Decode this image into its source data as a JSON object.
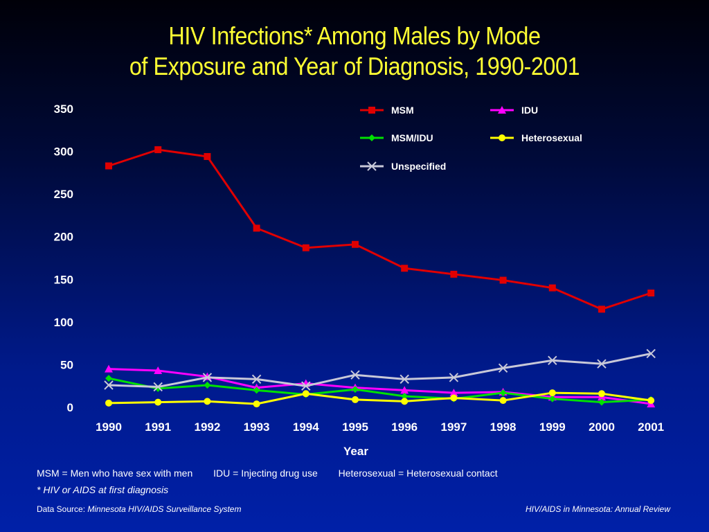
{
  "title": {
    "line1": "HIV Infections* Among Males by Mode",
    "line2": "of Exposure and Year of Diagnosis, 1990-2001"
  },
  "chart_data": {
    "type": "line",
    "xlabel": "Year",
    "ylabel": "",
    "ylim": [
      0,
      350
    ],
    "yticks": [
      0,
      50,
      100,
      150,
      200,
      250,
      300,
      350
    ],
    "x": [
      "1990",
      "1991",
      "1992",
      "1993",
      "1994",
      "1995",
      "1996",
      "1997",
      "1998",
      "1999",
      "2000",
      "2001"
    ],
    "grid": false,
    "legend_position": "top-right",
    "series": [
      {
        "name": "MSM",
        "color": "#e00000",
        "marker": "square",
        "values": [
          283,
          302,
          294,
          210,
          187,
          191,
          163,
          156,
          149,
          140,
          115,
          134
        ]
      },
      {
        "name": "IDU",
        "color": "#ff00ff",
        "marker": "triangle",
        "values": [
          45,
          43,
          36,
          23,
          28,
          23,
          20,
          17,
          18,
          12,
          12,
          4
        ]
      },
      {
        "name": "MSM/IDU",
        "color": "#00e000",
        "marker": "diamond",
        "values": [
          34,
          22,
          26,
          20,
          15,
          21,
          13,
          10,
          17,
          10,
          6,
          9
        ]
      },
      {
        "name": "Heterosexual",
        "color": "#ffff00",
        "marker": "circle",
        "values": [
          5,
          6,
          7,
          4,
          16,
          9,
          7,
          11,
          8,
          17,
          16,
          8
        ]
      },
      {
        "name": "Unspecified",
        "color": "#c8c8d8",
        "marker": "x",
        "values": [
          26,
          24,
          35,
          33,
          25,
          38,
          33,
          35,
          46,
          55,
          51,
          63
        ]
      }
    ]
  },
  "footnotes": {
    "msm": "MSM = Men who have sex with men",
    "idu": "IDU = Injecting drug use",
    "het": "Heterosexual = Heterosexual contact",
    "asterisk": "* HIV or AIDS at first diagnosis"
  },
  "source": {
    "label": "Data Source:",
    "name": "Minnesota HIV/AIDS Surveillance System"
  },
  "review": "HIV/AIDS in Minnesota: Annual Review"
}
